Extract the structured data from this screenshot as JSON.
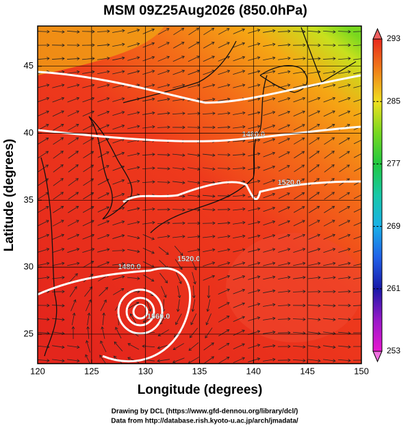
{
  "title": "MSM 09Z25Aug2026 (850.0hPa)",
  "x_axis": {
    "label": "Longitude (degrees)",
    "lim": [
      120,
      150
    ],
    "ticks": [
      120,
      125,
      130,
      135,
      140,
      145,
      150
    ]
  },
  "y_axis": {
    "label": "Latitude  (degrees)",
    "lim": [
      22.8,
      48.0
    ],
    "ticks": [
      25,
      30,
      35,
      40,
      45
    ]
  },
  "colorbar": {
    "lim": [
      253,
      293
    ],
    "ticks": [
      293,
      285,
      277,
      269,
      261,
      253
    ]
  },
  "contour_labels": [
    {
      "label": "1480.0",
      "lon": 140.0,
      "lat": 39.9
    },
    {
      "label": "1520.0",
      "lon": 143.3,
      "lat": 36.3
    },
    {
      "label": "1480.0",
      "lon": 128.5,
      "lat": 30.0
    },
    {
      "label": "1520.0",
      "lon": 134.0,
      "lat": 30.6
    },
    {
      "label": "1560.0",
      "lon": 131.2,
      "lat": 26.3
    }
  ],
  "footer": [
    "Drawing by DCL (https://www.gfd-dennou.org/library/dcl/)",
    "Data from http://database.rish.kyoto-u.ac.jp/arch/jmadata/"
  ]
}
